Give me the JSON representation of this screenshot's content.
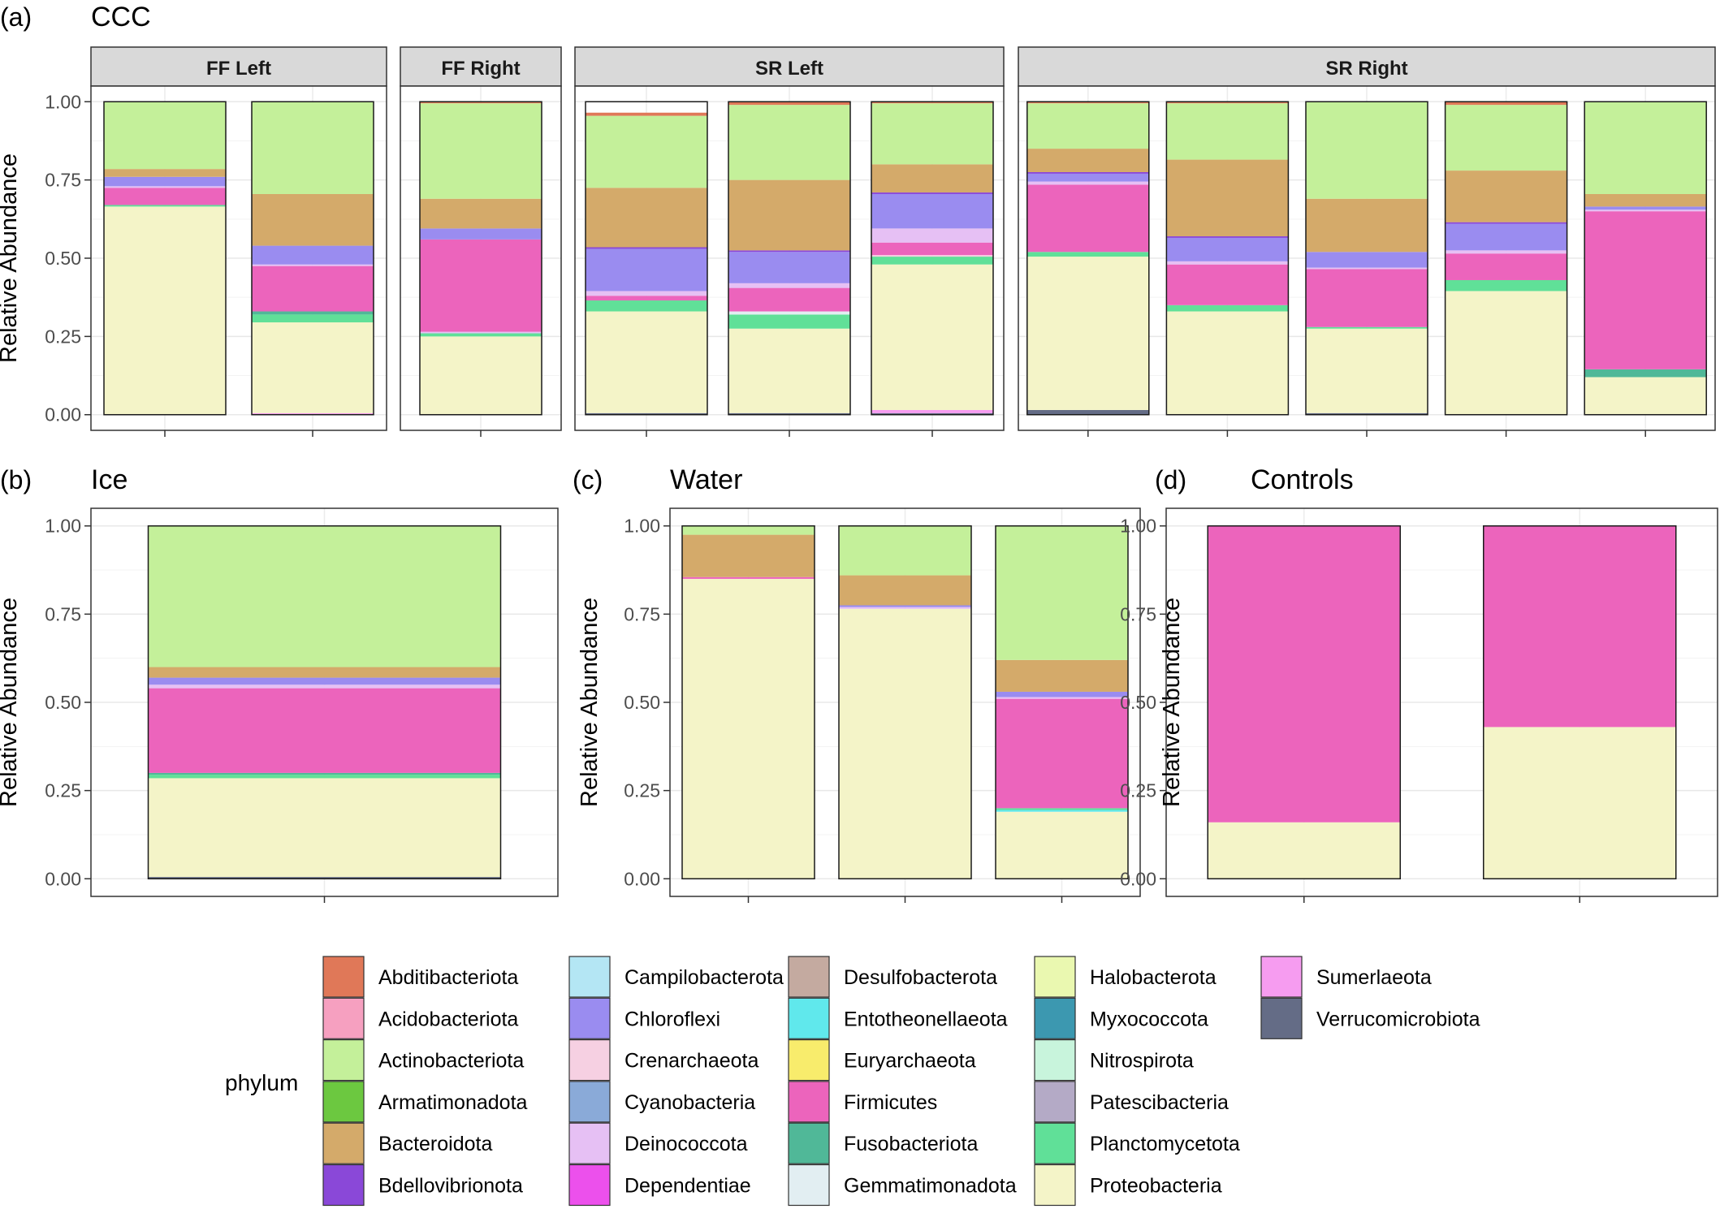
{
  "panels": [
    {
      "tag": "(a)",
      "title": "CCC"
    },
    {
      "tag": "(b)",
      "title": "Ice"
    },
    {
      "tag": "(c)",
      "title": "Water"
    },
    {
      "tag": "(d)",
      "title": "Controls"
    }
  ],
  "legend": {
    "title": "phylum",
    "items": [
      {
        "name": "Abditibacteriota",
        "color": "#e07858"
      },
      {
        "name": "Acidobacteriota",
        "color": "#f6a0c0"
      },
      {
        "name": "Actinobacteriota",
        "color": "#c4f09a"
      },
      {
        "name": "Armatimonadota",
        "color": "#6cc840"
      },
      {
        "name": "Bacteroidota",
        "color": "#d4aa6a"
      },
      {
        "name": "Bdellovibrionota",
        "color": "#8a48d8"
      },
      {
        "name": "Campilobacterota",
        "color": "#b4e6f4"
      },
      {
        "name": "Chloroflexi",
        "color": "#9a8cf0"
      },
      {
        "name": "Crenarchaeota",
        "color": "#f6d0e2"
      },
      {
        "name": "Cyanobacteria",
        "color": "#8aaad8"
      },
      {
        "name": "Deinococcota",
        "color": "#e6c0f4"
      },
      {
        "name": "Dependentiae",
        "color": "#ec50ec"
      },
      {
        "name": "Desulfobacterota",
        "color": "#c4aaa0"
      },
      {
        "name": "Entotheonellaeota",
        "color": "#60e8ec"
      },
      {
        "name": "Euryarchaeota",
        "color": "#f8ec6c"
      },
      {
        "name": "Firmicutes",
        "color": "#ec64bc"
      },
      {
        "name": "Fusobacteriota",
        "color": "#50b898"
      },
      {
        "name": "Gemmatimonadota",
        "color": "#e2eef2"
      },
      {
        "name": "Halobacterota",
        "color": "#eaf8b0"
      },
      {
        "name": "Myxococcota",
        "color": "#3c98b0"
      },
      {
        "name": "Nitrospirota",
        "color": "#c8f4dc"
      },
      {
        "name": "Patescibacteria",
        "color": "#b4aac6"
      },
      {
        "name": "Planctomycetota",
        "color": "#60e098"
      },
      {
        "name": "Proteobacteria",
        "color": "#f4f4c8"
      },
      {
        "name": "Sumerlaeota",
        "color": "#f69cf0"
      },
      {
        "name": "Verrucomicrobiota",
        "color": "#646c86"
      }
    ]
  },
  "chart_data": [
    {
      "type": "bar",
      "stacked": true,
      "title": "CCC",
      "ylabel": "Relative Abundance",
      "ylim": [
        0,
        1
      ],
      "yticks": [
        "0.00",
        "0.25",
        "0.50",
        "0.75",
        "1.00"
      ],
      "facets": [
        {
          "name": "FF Left",
          "bars": [
            [
              [
                "Proteobacteria",
                0.665
              ],
              [
                "Planctomycetota",
                0.005
              ],
              [
                "Firmicutes",
                0.055
              ],
              [
                "Deinococcota",
                0.005
              ],
              [
                "Chloroflexi",
                0.03
              ],
              [
                "Bacteroidota",
                0.025
              ],
              [
                "Actinobacteriota",
                0.215
              ]
            ],
            [
              [
                "Sumerlaeota",
                0.005
              ],
              [
                "Proteobacteria",
                0.29
              ],
              [
                "Planctomycetota",
                0.025
              ],
              [
                "Fusobacteriota",
                0.01
              ],
              [
                "Firmicutes",
                0.145
              ],
              [
                "Deinococcota",
                0.005
              ],
              [
                "Chloroflexi",
                0.06
              ],
              [
                "Bacteroidota",
                0.165
              ],
              [
                "Actinobacteriota",
                0.295
              ]
            ]
          ]
        },
        {
          "name": "FF Right",
          "bars": [
            [
              [
                "Proteobacteria",
                0.25
              ],
              [
                "Planctomycetota",
                0.01
              ],
              [
                "Deinococcota",
                0.005
              ],
              [
                "Firmicutes",
                0.295
              ],
              [
                "Chloroflexi",
                0.035
              ],
              [
                "Bacteroidota",
                0.095
              ],
              [
                "Actinobacteriota",
                0.305
              ],
              [
                "Abditibacteriota",
                0.005
              ]
            ]
          ]
        },
        {
          "name": "SR Left",
          "bars": [
            [
              [
                "Verrucomicrobiota",
                0.005
              ],
              [
                "Proteobacteria",
                0.325
              ],
              [
                "Planctomycetota",
                0.035
              ],
              [
                "Firmicutes",
                0.015
              ],
              [
                "Deinococcota",
                0.015
              ],
              [
                "Chloroflexi",
                0.135
              ],
              [
                "Bdellovibrionota",
                0.005
              ],
              [
                "Bacteroidota",
                0.19
              ],
              [
                "Actinobacteriota",
                0.23
              ],
              [
                "Abditibacteriota",
                0.01
              ]
            ],
            [
              [
                "Verrucomicrobiota",
                0.005
              ],
              [
                "Proteobacteria",
                0.27
              ],
              [
                "Planctomycetota",
                0.045
              ],
              [
                "Gemmatimonadota",
                0.01
              ],
              [
                "Firmicutes",
                0.075
              ],
              [
                "Deinococcota",
                0.015
              ],
              [
                "Chloroflexi",
                0.1
              ],
              [
                "Bdellovibrionota",
                0.005
              ],
              [
                "Bacteroidota",
                0.225
              ],
              [
                "Actinobacteriota",
                0.24
              ],
              [
                "Abditibacteriota",
                0.01
              ]
            ],
            [
              [
                "Verrucomicrobiota",
                0.005
              ],
              [
                "Sumerlaeota",
                0.01
              ],
              [
                "Proteobacteria",
                0.465
              ],
              [
                "Planctomycetota",
                0.025
              ],
              [
                "Crenarchaeota",
                0.005
              ],
              [
                "Firmicutes",
                0.04
              ],
              [
                "Deinococcota",
                0.045
              ],
              [
                "Chloroflexi",
                0.11
              ],
              [
                "Bdellovibrionota",
                0.005
              ],
              [
                "Bacteroidota",
                0.09
              ],
              [
                "Actinobacteriota",
                0.195
              ],
              [
                "Abditibacteriota",
                0.005
              ]
            ]
          ]
        },
        {
          "name": "SR Right",
          "bars": [
            [
              [
                "Verrucomicrobiota",
                0.015
              ],
              [
                "Proteobacteria",
                0.49
              ],
              [
                "Planctomycetota",
                0.015
              ],
              [
                "Firmicutes",
                0.215
              ],
              [
                "Deinococcota",
                0.01
              ],
              [
                "Chloroflexi",
                0.025
              ],
              [
                "Bdellovibrionota",
                0.005
              ],
              [
                "Bacteroidota",
                0.075
              ],
              [
                "Actinobacteriota",
                0.145
              ],
              [
                "Abditibacteriota",
                0.005
              ]
            ],
            [
              [
                "Proteobacteria",
                0.33
              ],
              [
                "Planctomycetota",
                0.02
              ],
              [
                "Firmicutes",
                0.13
              ],
              [
                "Deinococcota",
                0.01
              ],
              [
                "Chloroflexi",
                0.075
              ],
              [
                "Bdellovibrionota",
                0.005
              ],
              [
                "Bacteroidota",
                0.245
              ],
              [
                "Actinobacteriota",
                0.18
              ],
              [
                "Abditibacteriota",
                0.005
              ]
            ],
            [
              [
                "Verrucomicrobiota",
                0.005
              ],
              [
                "Proteobacteria",
                0.27
              ],
              [
                "Planctomycetota",
                0.005
              ],
              [
                "Firmicutes",
                0.185
              ],
              [
                "Deinococcota",
                0.005
              ],
              [
                "Chloroflexi",
                0.05
              ],
              [
                "Bacteroidota",
                0.17
              ],
              [
                "Actinobacteriota",
                0.31
              ]
            ],
            [
              [
                "Proteobacteria",
                0.395
              ],
              [
                "Planctomycetota",
                0.035
              ],
              [
                "Firmicutes",
                0.085
              ],
              [
                "Deinococcota",
                0.01
              ],
              [
                "Chloroflexi",
                0.085
              ],
              [
                "Bdellovibrionota",
                0.005
              ],
              [
                "Bacteroidota",
                0.165
              ],
              [
                "Actinobacteriota",
                0.21
              ],
              [
                "Abditibacteriota",
                0.01
              ]
            ],
            [
              [
                "Proteobacteria",
                0.12
              ],
              [
                "Fusobacteriota",
                0.025
              ],
              [
                "Firmicutes",
                0.505
              ],
              [
                "Deinococcota",
                0.005
              ],
              [
                "Chloroflexi",
                0.01
              ],
              [
                "Bacteroidota",
                0.04
              ],
              [
                "Actinobacteriota",
                0.295
              ]
            ]
          ]
        }
      ]
    },
    {
      "type": "bar",
      "stacked": true,
      "title": "Ice",
      "ylabel": "Relative Abundance",
      "ylim": [
        0,
        1
      ],
      "yticks": [
        "0.00",
        "0.25",
        "0.50",
        "0.75",
        "1.00"
      ],
      "bars": [
        [
          [
            "Verrucomicrobiota",
            0.005
          ],
          [
            "Proteobacteria",
            0.28
          ],
          [
            "Planctomycetota",
            0.01
          ],
          [
            "Fusobacteriota",
            0.005
          ],
          [
            "Firmicutes",
            0.24
          ],
          [
            "Deinococcota",
            0.01
          ],
          [
            "Chloroflexi",
            0.02
          ],
          [
            "Bacteroidota",
            0.03
          ],
          [
            "Actinobacteriota",
            0.4
          ]
        ]
      ]
    },
    {
      "type": "bar",
      "stacked": true,
      "title": "Water",
      "ylabel": "Relative Abundance",
      "ylim": [
        0,
        1
      ],
      "yticks": [
        "0.00",
        "0.25",
        "0.50",
        "0.75",
        "1.00"
      ],
      "bars": [
        [
          [
            "Proteobacteria",
            0.85
          ],
          [
            "Firmicutes",
            0.005
          ],
          [
            "Bacteroidota",
            0.12
          ],
          [
            "Actinobacteriota",
            0.025
          ]
        ],
        [
          [
            "Proteobacteria",
            0.765
          ],
          [
            "Deinococcota",
            0.005
          ],
          [
            "Chloroflexi",
            0.005
          ],
          [
            "Bacteroidota",
            0.085
          ],
          [
            "Actinobacteriota",
            0.14
          ]
        ],
        [
          [
            "Proteobacteria",
            0.19
          ],
          [
            "Entotheonellaeota",
            0.005
          ],
          [
            "Planctomycetota",
            0.005
          ],
          [
            "Firmicutes",
            0.31
          ],
          [
            "Deinococcota",
            0.005
          ],
          [
            "Chloroflexi",
            0.015
          ],
          [
            "Bacteroidota",
            0.09
          ],
          [
            "Actinobacteriota",
            0.38
          ]
        ]
      ]
    },
    {
      "type": "bar",
      "stacked": true,
      "title": "Controls",
      "ylabel": "Relative Abundance",
      "ylim": [
        0,
        1
      ],
      "yticks": [
        "0.00",
        "0.25",
        "0.50",
        "0.75",
        "1.00"
      ],
      "bars": [
        [
          [
            "Proteobacteria",
            0.16
          ],
          [
            "Firmicutes",
            0.84
          ]
        ],
        [
          [
            "Proteobacteria",
            0.43
          ],
          [
            "Firmicutes",
            0.57
          ]
        ]
      ]
    }
  ]
}
